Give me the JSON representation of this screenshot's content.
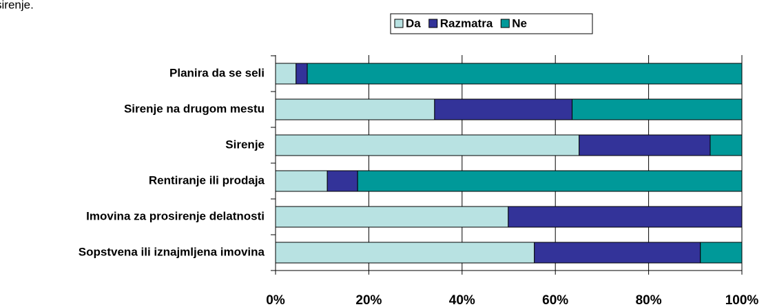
{
  "caption": "sirenje.",
  "chart_data": {
    "type": "stacked_barh",
    "categories": [
      "Planira da se seli",
      "Sirenje na drugom mestu",
      "Sirenje",
      "Rentiranje ili prodaja",
      "Imovina za prosirenje delatnosti",
      "Sopstvena ili iznajmljena imovina"
    ],
    "series": [
      {
        "name": "Da",
        "color": "#b8e2e2",
        "values": [
          4.4,
          34.1,
          65.1,
          11.1,
          49.9,
          55.5
        ]
      },
      {
        "name": "Razmatra",
        "color": "#333399",
        "values": [
          2.4,
          29.5,
          28.1,
          6.5,
          50.1,
          35.6
        ]
      },
      {
        "name": "Ne",
        "color": "#009999",
        "values": [
          93.2,
          36.4,
          6.8,
          82.4,
          0,
          8.9
        ]
      }
    ],
    "xlim": [
      0,
      100
    ],
    "xticks": [
      {
        "value": 0,
        "label": "0%"
      },
      {
        "value": 20,
        "label": "20%"
      },
      {
        "value": 40,
        "label": "40%"
      },
      {
        "value": 60,
        "label": "60%"
      },
      {
        "value": 80,
        "label": "80%"
      },
      {
        "value": 100,
        "label": "100%"
      }
    ],
    "grid": true,
    "legend": "top"
  }
}
